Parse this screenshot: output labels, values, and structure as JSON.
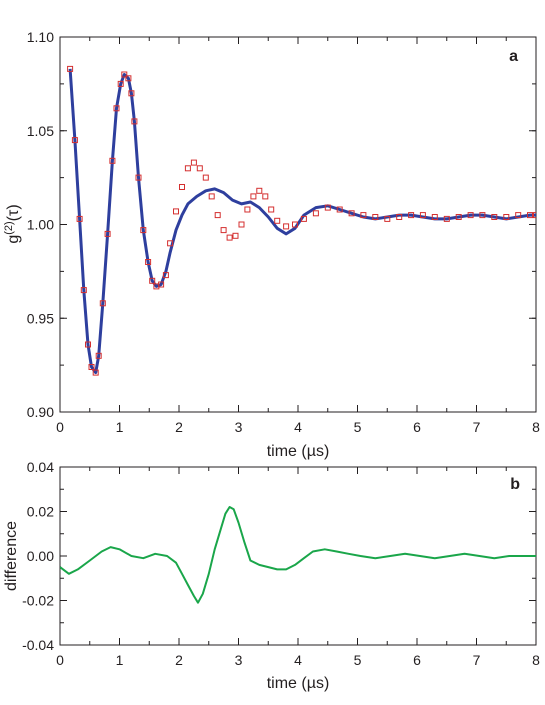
{
  "chart_data": [
    {
      "panel": "a",
      "type": "line",
      "xlabel": "time (µs)",
      "ylabel_base": "g",
      "ylabel_sup": "(2)",
      "ylabel_arg": "(τ)",
      "xlim": [
        0,
        8
      ],
      "ylim": [
        0.9,
        1.1
      ],
      "xticks": [
        "0",
        "1",
        "2",
        "3",
        "4",
        "5",
        "6",
        "7",
        "8"
      ],
      "yticks": [
        "0.90",
        "0.95",
        "1.00",
        "1.05",
        "1.10"
      ],
      "grid": false,
      "series": [
        {
          "style": "line",
          "color": "#2e3f9e",
          "x": [
            0.17,
            0.25,
            0.33,
            0.4,
            0.47,
            0.53,
            0.6,
            0.65,
            0.72,
            0.8,
            0.88,
            0.95,
            1.02,
            1.08,
            1.15,
            1.2,
            1.25,
            1.32,
            1.4,
            1.48,
            1.55,
            1.62,
            1.7,
            1.78,
            1.85,
            1.95,
            2.05,
            2.15,
            2.3,
            2.45,
            2.6,
            2.75,
            2.9,
            3.05,
            3.2,
            3.35,
            3.5,
            3.65,
            3.8,
            3.95,
            4.1,
            4.3,
            4.5,
            4.7,
            4.9,
            5.1,
            5.3,
            5.5,
            5.7,
            5.9,
            6.1,
            6.3,
            6.5,
            6.7,
            6.9,
            7.1,
            7.3,
            7.5,
            7.7,
            7.9,
            8.0
          ],
          "y": [
            1.083,
            1.045,
            1.003,
            0.965,
            0.936,
            0.924,
            0.921,
            0.93,
            0.958,
            0.995,
            1.034,
            1.062,
            1.075,
            1.08,
            1.078,
            1.07,
            1.055,
            1.025,
            0.997,
            0.98,
            0.97,
            0.967,
            0.968,
            0.975,
            0.985,
            0.997,
            1.005,
            1.011,
            1.015,
            1.018,
            1.019,
            1.017,
            1.013,
            1.011,
            1.012,
            1.009,
            1.004,
            0.998,
            0.995,
            0.998,
            1.005,
            1.009,
            1.01,
            1.008,
            1.006,
            1.004,
            1.003,
            1.004,
            1.005,
            1.005,
            1.004,
            1.003,
            1.003,
            1.004,
            1.005,
            1.005,
            1.004,
            1.003,
            1.004,
            1.005,
            1.005
          ]
        },
        {
          "style": "markers",
          "marker": "square",
          "color": "#d42f2f",
          "x": [
            0.17,
            0.25,
            0.33,
            0.4,
            0.47,
            0.53,
            0.6,
            0.65,
            0.72,
            0.8,
            0.88,
            0.95,
            1.02,
            1.08,
            1.15,
            1.2,
            1.25,
            1.32,
            1.4,
            1.48,
            1.55,
            1.62,
            1.7,
            1.78,
            1.85,
            1.95,
            2.05,
            2.15,
            2.25,
            2.35,
            2.45,
            2.55,
            2.65,
            2.75,
            2.85,
            2.95,
            3.05,
            3.15,
            3.25,
            3.35,
            3.45,
            3.55,
            3.65,
            3.8,
            3.95,
            4.1,
            4.3,
            4.5,
            4.7,
            4.9,
            5.1,
            5.3,
            5.5,
            5.7,
            5.9,
            6.1,
            6.3,
            6.5,
            6.7,
            6.9,
            7.1,
            7.3,
            7.5,
            7.7,
            7.9,
            8.0
          ],
          "y": [
            1.083,
            1.045,
            1.003,
            0.965,
            0.936,
            0.924,
            0.921,
            0.93,
            0.958,
            0.995,
            1.034,
            1.062,
            1.075,
            1.08,
            1.078,
            1.07,
            1.055,
            1.025,
            0.997,
            0.98,
            0.97,
            0.967,
            0.968,
            0.973,
            0.99,
            1.007,
            1.02,
            1.03,
            1.033,
            1.03,
            1.025,
            1.015,
            1.005,
            0.997,
            0.993,
            0.994,
            1.0,
            1.008,
            1.015,
            1.018,
            1.015,
            1.008,
            1.002,
            0.999,
            1.0,
            1.003,
            1.006,
            1.009,
            1.008,
            1.006,
            1.005,
            1.004,
            1.003,
            1.004,
            1.005,
            1.005,
            1.004,
            1.003,
            1.004,
            1.005,
            1.005,
            1.004,
            1.004,
            1.005,
            1.005,
            1.005
          ]
        }
      ]
    },
    {
      "panel": "b",
      "type": "line",
      "xlabel": "time (µs)",
      "ylabel": "difference",
      "xlim": [
        0,
        8
      ],
      "ylim": [
        -0.04,
        0.04
      ],
      "xticks": [
        "0",
        "1",
        "2",
        "3",
        "4",
        "5",
        "6",
        "7",
        "8"
      ],
      "yticks": [
        "-0.04",
        "-0.02",
        "0.00",
        "0.02",
        "0.04"
      ],
      "grid": false,
      "series": [
        {
          "style": "line",
          "color": "#1aa64a",
          "x": [
            0.0,
            0.15,
            0.3,
            0.5,
            0.7,
            0.85,
            1.0,
            1.2,
            1.4,
            1.6,
            1.8,
            1.95,
            2.05,
            2.15,
            2.25,
            2.32,
            2.4,
            2.5,
            2.6,
            2.7,
            2.78,
            2.85,
            2.92,
            3.0,
            3.1,
            3.2,
            3.35,
            3.5,
            3.65,
            3.8,
            3.95,
            4.1,
            4.25,
            4.45,
            4.65,
            4.85,
            5.05,
            5.3,
            5.55,
            5.8,
            6.05,
            6.3,
            6.55,
            6.8,
            7.05,
            7.3,
            7.55,
            7.8,
            8.0
          ],
          "y": [
            -0.005,
            -0.008,
            -0.006,
            -0.002,
            0.002,
            0.004,
            0.003,
            0.0,
            -0.001,
            0.001,
            0.0,
            -0.003,
            -0.008,
            -0.013,
            -0.018,
            -0.021,
            -0.017,
            -0.008,
            0.003,
            0.012,
            0.019,
            0.022,
            0.021,
            0.015,
            0.006,
            -0.002,
            -0.004,
            -0.005,
            -0.006,
            -0.006,
            -0.004,
            -0.001,
            0.002,
            0.003,
            0.002,
            0.001,
            0.0,
            -0.001,
            0.0,
            0.001,
            0.0,
            -0.001,
            0.0,
            0.001,
            0.0,
            -0.001,
            0.0,
            0.0,
            0.0
          ]
        }
      ]
    }
  ]
}
